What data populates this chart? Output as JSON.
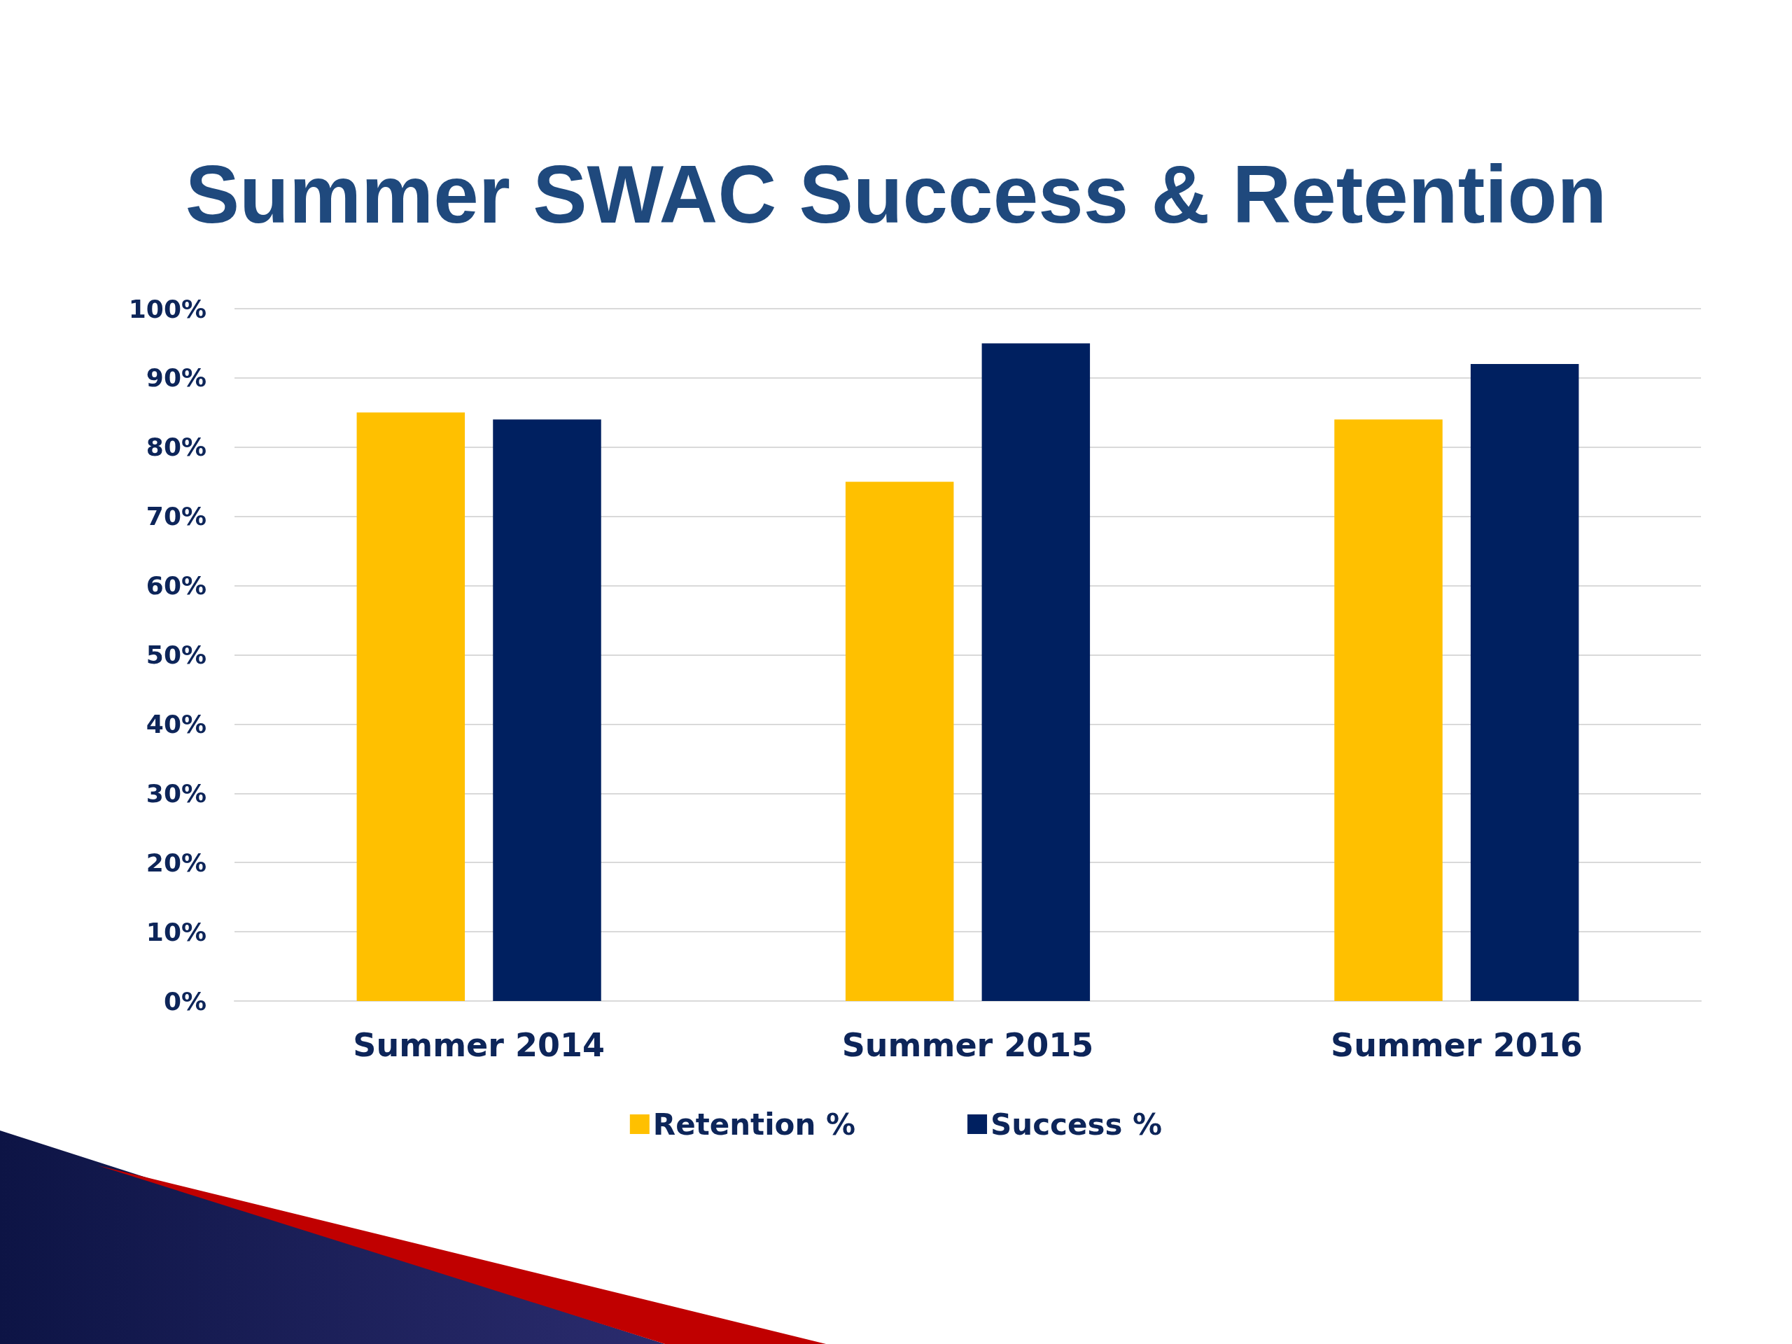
{
  "chart_data": {
    "type": "bar",
    "title": "Summer SWAC Success & Retention",
    "categories": [
      "Summer 2014",
      "Summer 2015",
      "Summer 2016"
    ],
    "series": [
      {
        "name": "Retention %",
        "color": "#ffc000",
        "values": [
          85,
          75,
          84
        ]
      },
      {
        "name": "Success %",
        "color": "#002060",
        "values": [
          84,
          95,
          92
        ]
      }
    ],
    "ylim": [
      0,
      100
    ],
    "yticks": [
      {
        "value": 0,
        "label": "0%"
      },
      {
        "value": 10,
        "label": "10%"
      },
      {
        "value": 20,
        "label": "20%"
      },
      {
        "value": 30,
        "label": "30%"
      },
      {
        "value": 40,
        "label": "40%"
      },
      {
        "value": 50,
        "label": "50%"
      },
      {
        "value": 60,
        "label": "60%"
      },
      {
        "value": 70,
        "label": "70%"
      },
      {
        "value": 80,
        "label": "80%"
      },
      {
        "value": 90,
        "label": "90%"
      },
      {
        "value": 100,
        "label": "100%"
      }
    ],
    "grid": "y",
    "legend": "bottom"
  }
}
